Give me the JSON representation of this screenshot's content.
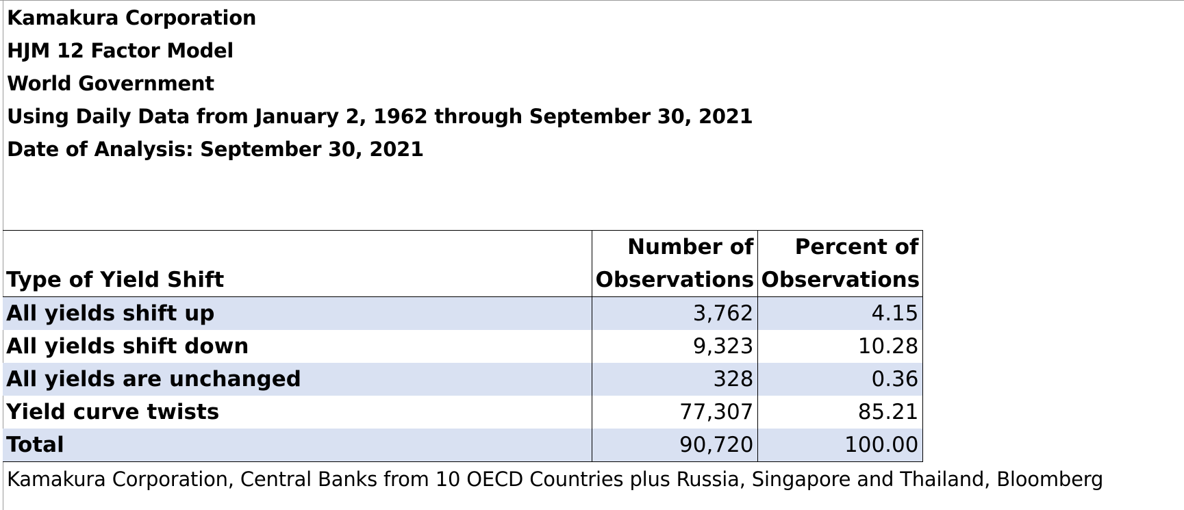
{
  "header": {
    "line1": "Kamakura Corporation",
    "line2": "HJM 12 Factor Model",
    "line3": "World Government",
    "line4": "Using Daily Data from January 2, 1962 through September 30, 2021",
    "line5": "Date of Analysis: September 30, 2021"
  },
  "table": {
    "columns": {
      "type_label": "Type of Yield Shift",
      "count_line1": "Number of",
      "count_line2": "Observations",
      "percent_line1": "Percent of",
      "percent_line2": "Observations"
    },
    "rows": [
      {
        "type": "All yields shift up",
        "count": "3,762",
        "percent": "4.15"
      },
      {
        "type": "All yields shift down",
        "count": "9,323",
        "percent": "10.28"
      },
      {
        "type": "All yields are unchanged",
        "count": "328",
        "percent": "0.36"
      },
      {
        "type": "Yield curve twists",
        "count": "77,307",
        "percent": "85.21"
      },
      {
        "type": "Total",
        "count": "90,720",
        "percent": "100.00"
      }
    ]
  },
  "source": "Kamakura Corporation, Central Banks from 10 OECD Countries plus Russia, Singapore and Thailand, Bloomberg",
  "colors": {
    "row_shade": "#d9e1f2",
    "grid_border": "#000000",
    "frame": "#9a9a9a"
  }
}
